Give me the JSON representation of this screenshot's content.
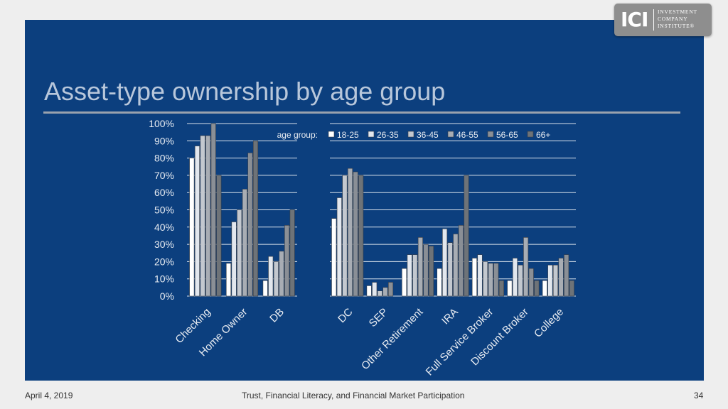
{
  "logo": {
    "mark": "ICI",
    "line1": "INVESTMENT",
    "line2": "COMPANY",
    "line3": "INSTITUTE®"
  },
  "title": "Asset-type ownership by age group",
  "footer": {
    "date": "April 4, 2019",
    "center": "Trust, Financial Literacy, and Financial Market Participation",
    "page": "34"
  },
  "colors": {
    "panel": "#0c3f7e",
    "series": [
      "#ffffff",
      "#e2e7ee",
      "#c3c8cf",
      "#a8adb4",
      "#8a8f96",
      "#6e7378"
    ]
  },
  "chart_data": [
    {
      "type": "bar",
      "title": "Asset-type ownership by age group",
      "legend_title": "age group:",
      "categories": [
        "Checking",
        "Home Owner",
        "DB"
      ],
      "series": [
        {
          "name": "18-25",
          "values": [
            80,
            19,
            9
          ]
        },
        {
          "name": "26-35",
          "values": [
            87,
            43,
            23
          ]
        },
        {
          "name": "36-45",
          "values": [
            93,
            50,
            20
          ]
        },
        {
          "name": "46-55",
          "values": [
            93,
            62,
            26
          ]
        },
        {
          "name": "56-65",
          "values": [
            100,
            83,
            41
          ]
        },
        {
          "name": "66+",
          "values": [
            70,
            90,
            50
          ]
        }
      ],
      "yticks": [
        "0%",
        "10%",
        "20%",
        "30%",
        "40%",
        "50%",
        "60%",
        "70%",
        "80%",
        "90%",
        "100%"
      ],
      "ylim": [
        0,
        100
      ],
      "grid": true
    },
    {
      "type": "bar",
      "categories": [
        "DC",
        "SEP",
        "Other Retirement",
        "IRA",
        "Full Service Broker",
        "Discount Broker",
        "College"
      ],
      "series": [
        {
          "name": "18-25",
          "values": [
            45,
            6,
            16,
            16,
            22,
            9,
            9
          ]
        },
        {
          "name": "26-35",
          "values": [
            57,
            8,
            24,
            39,
            24,
            22,
            18
          ]
        },
        {
          "name": "36-45",
          "values": [
            70,
            3,
            24,
            31,
            20,
            18,
            18
          ]
        },
        {
          "name": "46-55",
          "values": [
            74,
            5,
            34,
            36,
            19,
            34,
            22
          ]
        },
        {
          "name": "56-65",
          "values": [
            72,
            8,
            30,
            41,
            19,
            16,
            24
          ]
        },
        {
          "name": "66+",
          "values": [
            70,
            0,
            29,
            70,
            9,
            9,
            9
          ]
        }
      ],
      "legend": [
        "18-25",
        "26-35",
        "36-45",
        "46-55",
        "56-65",
        "66+"
      ],
      "legend_placement": "top-center",
      "ylim": [
        0,
        100
      ],
      "grid": true
    }
  ]
}
